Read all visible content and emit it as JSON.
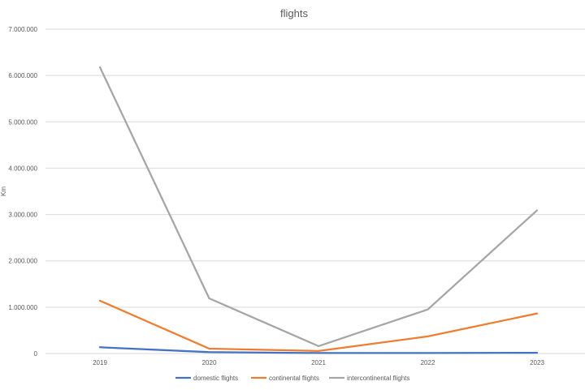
{
  "chart_data": {
    "type": "line",
    "title": "flights",
    "ylabel": "Km",
    "xlabel": "",
    "ylim": [
      0,
      7000000
    ],
    "y_ticks": [
      0,
      1000000,
      2000000,
      3000000,
      4000000,
      5000000,
      6000000,
      7000000
    ],
    "y_tick_labels": [
      "0",
      "1.000.000",
      "2.000.000",
      "3.000.000",
      "4.000.000",
      "5.000.000",
      "6.000.000",
      "7.000.000"
    ],
    "categories": [
      "2019",
      "2020",
      "2021",
      "2022",
      "2023"
    ],
    "grid": true,
    "legend_position": "bottom",
    "series": [
      {
        "name": "domestic flights",
        "color": "#4472c4",
        "values": [
          135000,
          30000,
          10000,
          10000,
          15000
        ]
      },
      {
        "name": "continental flights",
        "color": "#ed7d31",
        "values": [
          1140000,
          105000,
          55000,
          370000,
          865000
        ]
      },
      {
        "name": "intercontinental flights",
        "color": "#a5a5a5",
        "values": [
          6180000,
          1190000,
          160000,
          950000,
          3090000
        ]
      }
    ]
  }
}
